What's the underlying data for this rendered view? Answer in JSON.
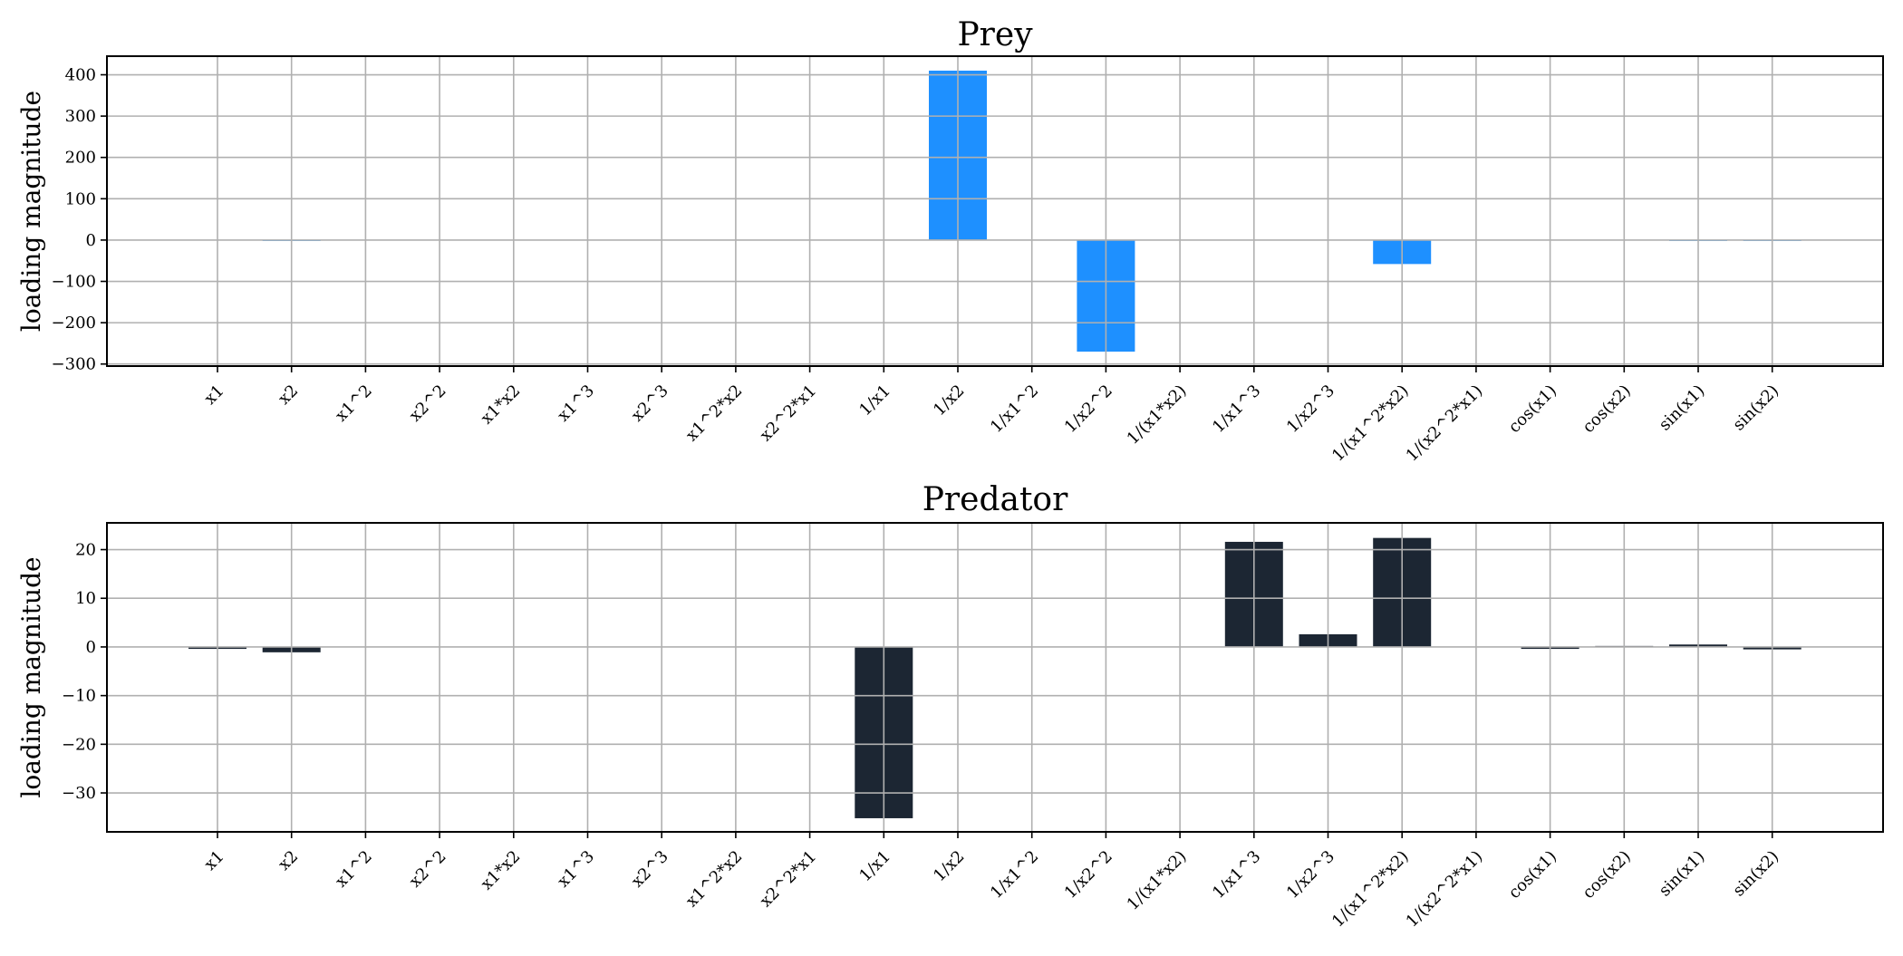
{
  "chart_data": [
    {
      "type": "bar",
      "title": "Prey",
      "xlabel": "",
      "ylabel": "loading magnitude",
      "color": "#1e90ff",
      "ylim": [
        -305,
        445
      ],
      "yticks": [
        400,
        300,
        200,
        100,
        0,
        -100,
        -200,
        -300
      ],
      "ytick_labels": [
        "400",
        "300",
        "200",
        "100",
        "0",
        "−100",
        "−200",
        "−300"
      ],
      "grid": true,
      "categories": [
        "x1",
        "x2",
        "x1^2",
        "x2^2",
        "x1*x2",
        "x1^3",
        "x2^3",
        "x1^2*x2",
        "x2^2*x1",
        "1/x1",
        "1/x2",
        "1/x1^2",
        "1/x2^2",
        "1/(x1*x2)",
        "1/x1^3",
        "1/x2^3",
        "1/(x1^2*x2)",
        "1/(x2^2*x1)",
        "cos(x1)",
        "cos(x2)",
        "sin(x1)",
        "sin(x2)"
      ],
      "values": [
        0,
        0.5,
        0,
        0,
        0,
        0,
        0,
        0,
        0,
        0,
        410,
        0,
        -270,
        0,
        0,
        0,
        -58,
        0,
        0,
        0,
        0.5,
        0.5
      ]
    },
    {
      "type": "bar",
      "title": "Predator",
      "xlabel": "",
      "ylabel": "loading magnitude",
      "color": "#1c2633",
      "ylim": [
        -38,
        25.5
      ],
      "yticks": [
        20,
        10,
        0,
        -10,
        -20,
        -30
      ],
      "ytick_labels": [
        "20",
        "10",
        "0",
        "−10",
        "−20",
        "−30"
      ],
      "grid": true,
      "categories": [
        "x1",
        "x2",
        "x1^2",
        "x2^2",
        "x1*x2",
        "x1^3",
        "x2^3",
        "x1^2*x2",
        "x2^2*x1",
        "1/x1",
        "1/x2",
        "1/x1^2",
        "1/x2^2",
        "1/(x1*x2)",
        "1/x1^3",
        "1/x2^3",
        "1/(x1^2*x2)",
        "1/(x2^2*x1)",
        "cos(x1)",
        "cos(x2)",
        "sin(x1)",
        "sin(x2)"
      ],
      "values": [
        -0.4,
        -1.1,
        0,
        0,
        0,
        0,
        0,
        0,
        0,
        -35.2,
        0,
        0,
        0,
        0,
        21.6,
        2.6,
        22.4,
        0,
        -0.4,
        0.2,
        0.5,
        -0.5
      ]
    }
  ]
}
